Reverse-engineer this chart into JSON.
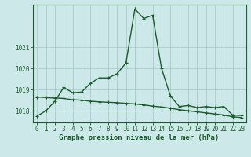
{
  "title": "",
  "xlabel": "Graphe pression niveau de la mer (hPa)",
  "bg_color": "#cce8e8",
  "grid_color": "#aacccc",
  "line_color": "#1a5c2a",
  "xlim_min": -0.5,
  "xlim_max": 23.5,
  "ylim_min": 1017.45,
  "ylim_max": 1023.0,
  "yticks": [
    1018,
    1019,
    1020,
    1021
  ],
  "xticks": [
    0,
    1,
    2,
    3,
    4,
    5,
    6,
    7,
    8,
    9,
    10,
    11,
    12,
    13,
    14,
    15,
    16,
    17,
    18,
    19,
    20,
    21,
    22,
    23
  ],
  "series1_x": [
    0,
    1,
    2,
    3,
    4,
    5,
    6,
    7,
    8,
    9,
    10,
    11,
    12,
    13,
    14,
    15,
    16,
    17,
    18,
    19,
    20,
    21,
    22,
    23
  ],
  "series1_y": [
    1017.75,
    1018.0,
    1018.45,
    1019.1,
    1018.85,
    1018.88,
    1019.3,
    1019.55,
    1019.55,
    1019.75,
    1020.25,
    1022.8,
    1022.35,
    1022.5,
    1020.0,
    1018.7,
    1018.2,
    1018.25,
    1018.15,
    1018.2,
    1018.15,
    1018.2,
    1017.8,
    1017.78
  ],
  "series2_x": [
    0,
    1,
    2,
    3,
    4,
    5,
    6,
    7,
    8,
    9,
    10,
    11,
    12,
    13,
    14,
    15,
    16,
    17,
    18,
    19,
    20,
    21,
    22,
    23
  ],
  "series2_y": [
    1018.65,
    1018.62,
    1018.6,
    1018.58,
    1018.52,
    1018.5,
    1018.45,
    1018.42,
    1018.4,
    1018.38,
    1018.35,
    1018.32,
    1018.28,
    1018.22,
    1018.18,
    1018.12,
    1018.05,
    1018.0,
    1017.95,
    1017.9,
    1017.85,
    1017.8,
    1017.72,
    1017.68
  ],
  "marker": "+",
  "markersize": 3.5,
  "linewidth": 1.0,
  "xlabel_fontsize": 6.5,
  "tick_fontsize": 5.5
}
